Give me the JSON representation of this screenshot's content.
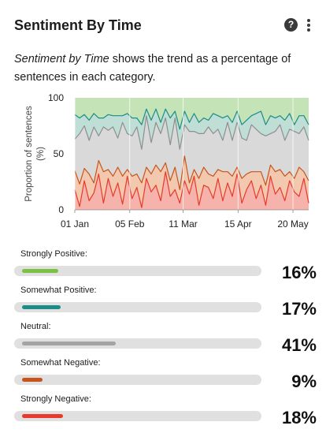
{
  "card": {
    "title": "Sentiment By Time",
    "help_icon": "?",
    "description_em": "Sentiment by Time",
    "description_rest": " shows the trend as a percentage of sentences in each category."
  },
  "chart_data": {
    "type": "area",
    "stacked": true,
    "ylabel": "Proportion of sentences (%)",
    "ylim": [
      0,
      100
    ],
    "y_ticks": [
      "0",
      "50",
      "100"
    ],
    "x_ticks": [
      "01 Jan",
      "05 Feb",
      "11 Mar",
      "15 Apr",
      "20 May"
    ],
    "x_tick_days": [
      0,
      35,
      69,
      104,
      139
    ],
    "x_range_days": [
      0,
      149
    ],
    "series": [
      {
        "key": "strongly_negative",
        "color": "#e8392b",
        "fill": "#f6b3ab",
        "values": [
          18,
          3,
          26,
          8,
          15,
          32,
          6,
          28,
          12,
          24,
          5,
          30,
          10,
          20,
          2,
          28,
          16,
          22,
          8,
          34,
          12,
          18,
          6,
          26,
          14,
          30,
          4,
          22,
          20,
          10,
          28,
          8,
          24,
          12,
          32,
          6,
          18,
          26,
          10,
          22,
          4,
          30,
          14,
          20,
          8,
          26,
          16,
          12,
          28,
          6
        ]
      },
      {
        "key": "somewhat_negative",
        "color": "#c8541c",
        "fill": "#f2c8ae",
        "values": [
          17,
          20,
          11,
          24,
          9,
          12,
          28,
          8,
          18,
          14,
          25,
          6,
          20,
          12,
          22,
          10,
          16,
          18,
          26,
          8,
          14,
          20,
          12,
          22,
          10,
          6,
          24,
          16,
          12,
          20,
          8,
          26,
          10,
          18,
          6,
          22,
          14,
          8,
          24,
          12,
          18,
          10,
          20,
          16,
          22,
          8,
          12,
          26,
          6,
          20
        ]
      },
      {
        "key": "neutral",
        "color": "#8f8f8f",
        "fill": "#d9d9d9",
        "values": [
          28,
          45,
          38,
          30,
          50,
          22,
          40,
          35,
          44,
          26,
          48,
          32,
          36,
          42,
          30,
          46,
          28,
          38,
          34,
          40,
          32,
          44,
          36,
          28,
          46,
          34,
          40,
          30,
          42,
          38,
          36,
          28,
          44,
          32,
          40,
          36,
          30,
          42,
          38,
          34,
          44,
          28,
          36,
          40,
          32,
          38,
          42,
          30,
          40,
          36
        ]
      },
      {
        "key": "somewhat_positive",
        "color": "#1c8d86",
        "fill": "#bfded6",
        "values": [
          22,
          14,
          10,
          18,
          12,
          16,
          8,
          14,
          10,
          20,
          6,
          18,
          16,
          8,
          22,
          6,
          20,
          12,
          10,
          8,
          24,
          6,
          18,
          12,
          8,
          16,
          10,
          14,
          6,
          18,
          12,
          20,
          6,
          16,
          10,
          12,
          18,
          8,
          14,
          20,
          10,
          16,
          12,
          8,
          18,
          14,
          6,
          16,
          10,
          14
        ]
      },
      {
        "key": "strongly_positive",
        "color": "#7cc143",
        "fill": "#c4e3b6",
        "values": [
          15,
          18,
          15,
          20,
          14,
          18,
          18,
          15,
          16,
          16,
          16,
          14,
          18,
          18,
          24,
          10,
          20,
          10,
          22,
          10,
          18,
          12,
          28,
          12,
          22,
          14,
          22,
          18,
          20,
          14,
          16,
          18,
          16,
          22,
          12,
          24,
          20,
          16,
          14,
          12,
          24,
          16,
          18,
          16,
          20,
          14,
          24,
          16,
          16,
          24
        ]
      }
    ]
  },
  "metrics": [
    {
      "label": "Strongly Positive:",
      "percent": "16%",
      "value": 0.16,
      "color": "#7cc143"
    },
    {
      "label": "Somewhat Positive:",
      "percent": "17%",
      "value": 0.17,
      "color": "#1c8d86"
    },
    {
      "label": "Neutral:",
      "percent": "41%",
      "value": 0.41,
      "color": "#a3a3a3"
    },
    {
      "label": "Somewhat Negative:",
      "percent": "9%",
      "value": 0.09,
      "color": "#c8541c"
    },
    {
      "label": "Strongly Negative:",
      "percent": "18%",
      "value": 0.18,
      "color": "#e8392b"
    }
  ]
}
